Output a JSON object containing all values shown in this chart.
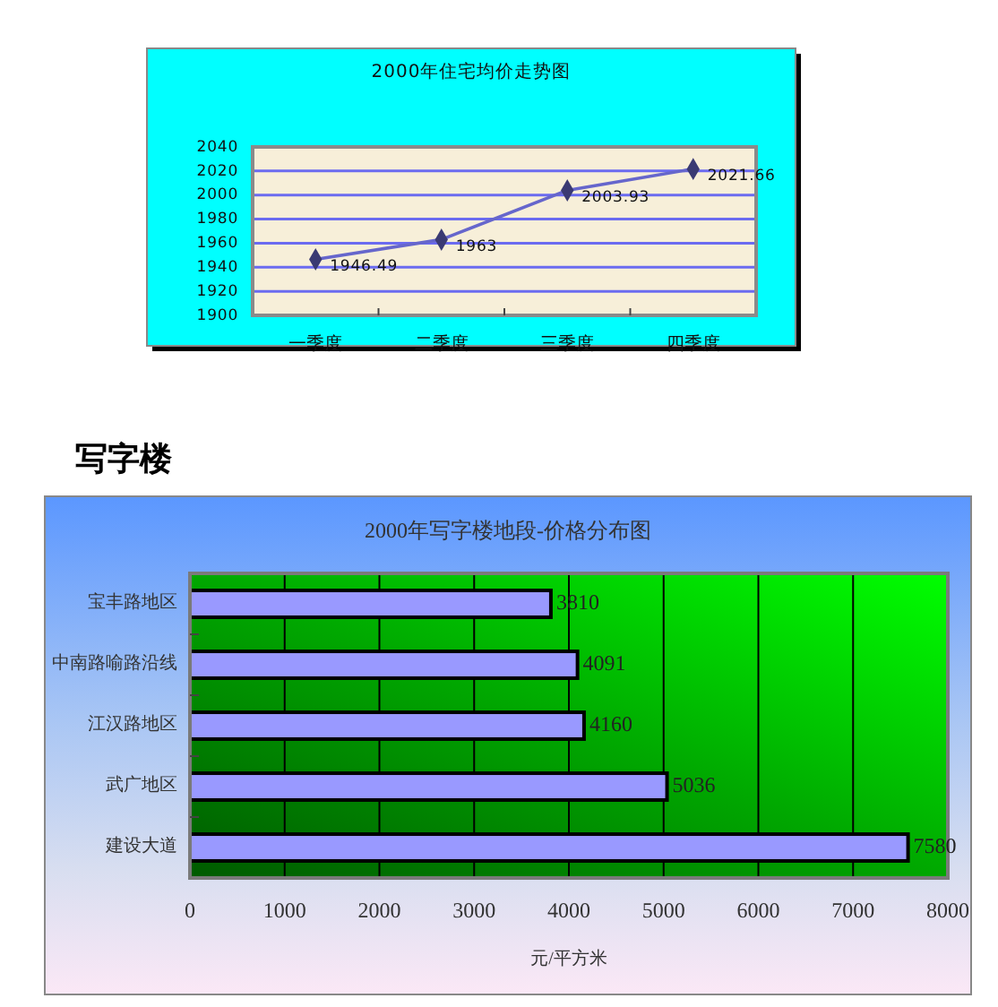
{
  "chart_data": [
    {
      "type": "line",
      "title": "2000年住宅均价走势图",
      "categories": [
        "一季度",
        "二季度",
        "三季度",
        "四季度"
      ],
      "values": [
        1946.49,
        1963,
        2003.93,
        2021.66
      ],
      "color": "#6666cc",
      "ylim": [
        1900,
        2040
      ],
      "yticks": [
        1900,
        1920,
        1940,
        1960,
        1980,
        2000,
        2020,
        2040
      ],
      "grid": "y",
      "marker": "diamond",
      "data_labels": true
    },
    {
      "type": "bar",
      "orientation": "horizontal",
      "title": "2000年写字楼地段-价格分布图",
      "annotations": [
        "写字楼"
      ],
      "categories": [
        "宝丰路地区",
        "中南路喻路沿线",
        "江汉路地区",
        "武广地区",
        "建设大道"
      ],
      "values": [
        3810,
        4091,
        4160,
        5036,
        7580
      ],
      "color": "#9999ff",
      "xlim": [
        0,
        8000
      ],
      "xticks": [
        0,
        1000,
        2000,
        3000,
        4000,
        5000,
        6000,
        7000,
        8000
      ],
      "xlabel": "元/平方米",
      "grid": "x",
      "data_labels": true
    }
  ]
}
